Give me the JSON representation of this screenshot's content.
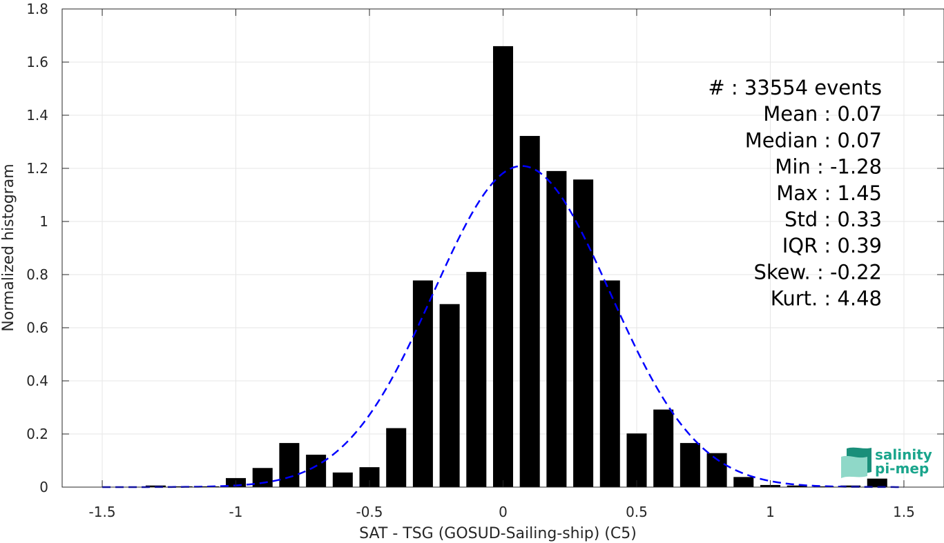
{
  "chart_data": {
    "type": "bar",
    "xlabel": "SAT - TSG (GOSUD-Sailing-ship) (C5)",
    "ylabel": "Normalized histogram",
    "xlim": [
      -1.65,
      1.65
    ],
    "ylim": [
      0,
      1.8
    ],
    "xticks": [
      -1.5,
      -1,
      -0.5,
      0,
      0.5,
      1,
      1.5
    ],
    "xtick_labels": [
      "-1.5",
      "-1",
      "-0.5",
      "0",
      "0.5",
      "1",
      "1.5"
    ],
    "yticks": [
      0,
      0.2,
      0.4,
      0.6,
      0.8,
      1,
      1.2,
      1.4,
      1.6,
      1.8
    ],
    "ytick_labels": [
      "0",
      "0.2",
      "0.4",
      "0.6",
      "0.8",
      "1",
      "1.2",
      "1.4",
      "1.6",
      "1.8"
    ],
    "grid": true,
    "bar_width": 0.075,
    "bin_centers": [
      -1.3,
      -1.2,
      -1.1,
      -1.0,
      -0.9,
      -0.8,
      -0.7,
      -0.6,
      -0.5,
      -0.4,
      -0.3,
      -0.2,
      -0.1,
      0.0,
      0.1,
      0.2,
      0.3,
      0.4,
      0.5,
      0.6,
      0.7,
      0.8,
      0.9,
      1.0,
      1.1,
      1.2,
      1.3,
      1.4
    ],
    "values": [
      0.006,
      0.003,
      0.003,
      0.034,
      0.072,
      0.166,
      0.122,
      0.055,
      0.075,
      0.222,
      0.778,
      0.689,
      0.81,
      1.66,
      1.322,
      1.19,
      1.158,
      0.778,
      0.202,
      0.292,
      0.166,
      0.128,
      0.038,
      0.008,
      0.006,
      0.003,
      0.006,
      0.032
    ],
    "bar_color": "#000000",
    "fit_curve": {
      "style": "dashed",
      "color": "#0000ff",
      "distribution": "normal",
      "mean": 0.07,
      "std": 0.33,
      "x_range": [
        -1.5,
        1.5
      ]
    },
    "stats": [
      {
        "label": "#  ",
        "value": ": 33554 events"
      },
      {
        "label": "Mean ",
        "value": ": 0.07"
      },
      {
        "label": "Median ",
        "value": ": 0.07"
      },
      {
        "label": "Min ",
        "value": ": -1.28"
      },
      {
        "label": "Max ",
        "value": ": 1.45"
      },
      {
        "label": "Std ",
        "value": ": 0.33"
      },
      {
        "label": "IQR ",
        "value": ": 0.39"
      },
      {
        "label": "Skew. ",
        "value": ": -0.22"
      },
      {
        "label": "Kurt. ",
        "value": ": 4.48"
      }
    ]
  },
  "logo": {
    "line1": "salinity",
    "line2": "pi-mep",
    "colors": {
      "text": "#1aa58c",
      "shade_dark": "#1a8f7a",
      "shade_light": "#8fd8c8"
    }
  }
}
